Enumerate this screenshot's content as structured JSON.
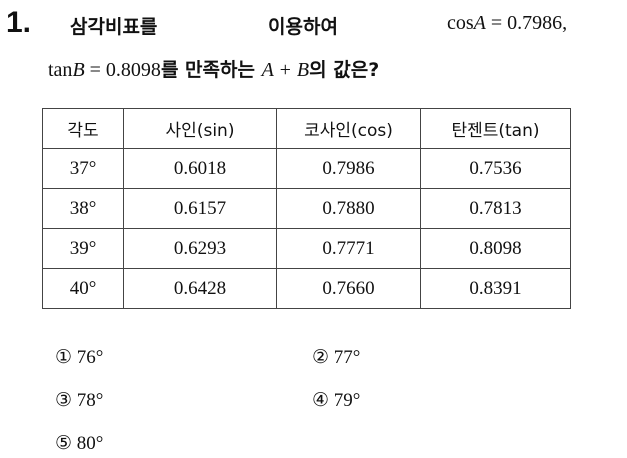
{
  "question": {
    "number": "1.",
    "line1a": "삼각비표를",
    "line1b": "이용하여",
    "cos_prefix": "cos",
    "cos_var": "A",
    "cos_rest": " = 0.7986,",
    "tan_prefix": "tan",
    "tan_var": "B",
    "tan_rest": " = 0.8098",
    "line2a": "를  만족하는 ",
    "sum": "A + B",
    "line2b": "의  값은?"
  },
  "table": {
    "headers": [
      "각도",
      "사인(sin)",
      "코사인(cos)",
      "탄젠트(tan)"
    ],
    "rows": [
      [
        "37°",
        "0.6018",
        "0.7986",
        "0.7536"
      ],
      [
        "38°",
        "0.6157",
        "0.7880",
        "0.7813"
      ],
      [
        "39°",
        "0.6293",
        "0.7771",
        "0.8098"
      ],
      [
        "40°",
        "0.6428",
        "0.7660",
        "0.8391"
      ]
    ]
  },
  "choices": [
    "① 76°",
    "② 77°",
    "③ 78°",
    "④ 79°",
    "⑤ 80°"
  ]
}
